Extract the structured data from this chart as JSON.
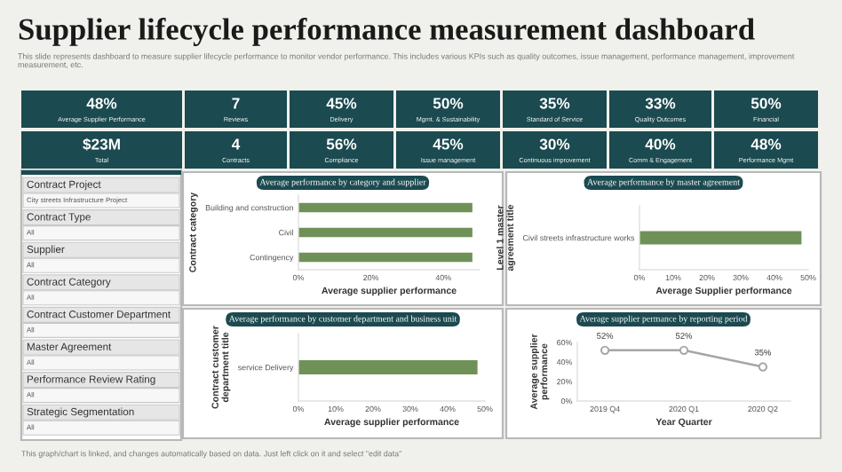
{
  "chart_data": [
    {
      "type": "other",
      "title": "Supplier lifecycle performance measurement dashboard",
      "subtitle": "This slide represents dashboard to measure supplier lifecycle performance to monitor vendor performance. This includes various KPIs such as quality outcomes, issue management, performance management, improvement measurement, etc.",
      "color": "#1b4a50",
      "annotations": [
        "48%",
        "Average Supplier Performance",
        "7",
        "Reviews",
        "45%",
        "Delivery",
        "50%",
        "Mgmt. & Sustainability",
        "35%",
        "Standard of Service",
        "33%",
        "Quality Outcomes",
        "50%",
        "Financial",
        "$23M",
        "Total",
        "4",
        "Contracts",
        "56%",
        "Compliance",
        "45%",
        "Issue management",
        "30%",
        "Continuous improvement",
        "40%",
        "Comm & Engagement",
        "48%",
        "Performance Mgmt",
        "This graph/chart is linked, and changes automatically based on data. Just left click on it and select \"edit data\""
      ]
    },
    {
      "type": "other",
      "color": "#1b4a50",
      "annotations": [
        "Contract Project",
        "City streets Infrastructure Project",
        "Contract Type",
        "All",
        "Supplier",
        "All",
        "Contract Category",
        "All",
        "Contract Customer Department",
        "All",
        "Master Agreement",
        "All",
        "Performance Review Rating",
        "All",
        "Strategic Segmentation",
        "All"
      ]
    },
    {
      "type": "bar",
      "orientation": "horizontal",
      "title": "Average performance by category and supplier",
      "xlabel": "Average supplier performance",
      "ylabel": "Contract category",
      "categories": [
        "Building and construction",
        "Civil",
        "Contingency"
      ],
      "values": [
        48,
        48,
        48
      ],
      "color": "#6f9158",
      "xlim": [
        0,
        50
      ],
      "xticks": [
        {
          "value": 0,
          "label": "0%"
        },
        {
          "value": 20,
          "label": "20%"
        },
        {
          "value": 40,
          "label": "40%"
        }
      ]
    },
    {
      "type": "bar",
      "orientation": "horizontal",
      "title": "Average performance by master agreement",
      "xlabel": "Average Supplier performance",
      "ylabel": "Level 1 master agreement title",
      "categories": [
        "Civil streets infrastructure works"
      ],
      "values": [
        48
      ],
      "color": "#6f9158",
      "xlim": [
        0,
        50
      ],
      "xticks": [
        {
          "value": 0,
          "label": "0%"
        },
        {
          "value": 10,
          "label": "10%"
        },
        {
          "value": 20,
          "label": "20%"
        },
        {
          "value": 30,
          "label": "30%"
        },
        {
          "value": 40,
          "label": "40%"
        },
        {
          "value": 50,
          "label": "50%"
        }
      ]
    },
    {
      "type": "bar",
      "orientation": "horizontal",
      "title": "Average performance by customer department and business unit",
      "xlabel": "Average supplier performance",
      "ylabel": "Contract customer department title",
      "categories": [
        "service Delivery"
      ],
      "values": [
        48
      ],
      "color": "#6f9158",
      "xlim": [
        0,
        50
      ],
      "xticks": [
        {
          "value": 0,
          "label": "0%"
        },
        {
          "value": 10,
          "label": "10%"
        },
        {
          "value": 20,
          "label": "20%"
        },
        {
          "value": 30,
          "label": "30%"
        },
        {
          "value": 40,
          "label": "40%"
        },
        {
          "value": 50,
          "label": "50%"
        }
      ]
    },
    {
      "type": "line",
      "title": "Average supplier permance by reporting period",
      "xlabel": "Year Quarter",
      "ylabel": "Average supplier performance",
      "categories": [
        "2019 Q4",
        "2020 Q1",
        "2020 Q2"
      ],
      "values": [
        52,
        52,
        35
      ],
      "value_labels": [
        "52%",
        "52%",
        "35%"
      ],
      "color": "#a6a6a6",
      "marker": "circle",
      "ylim": [
        0,
        60
      ],
      "yticks": [
        {
          "value": 0,
          "label": "0%"
        },
        {
          "value": 20,
          "label": "20%"
        },
        {
          "value": 40,
          "label": "40%"
        },
        {
          "value": 60,
          "label": "60%"
        }
      ]
    }
  ]
}
